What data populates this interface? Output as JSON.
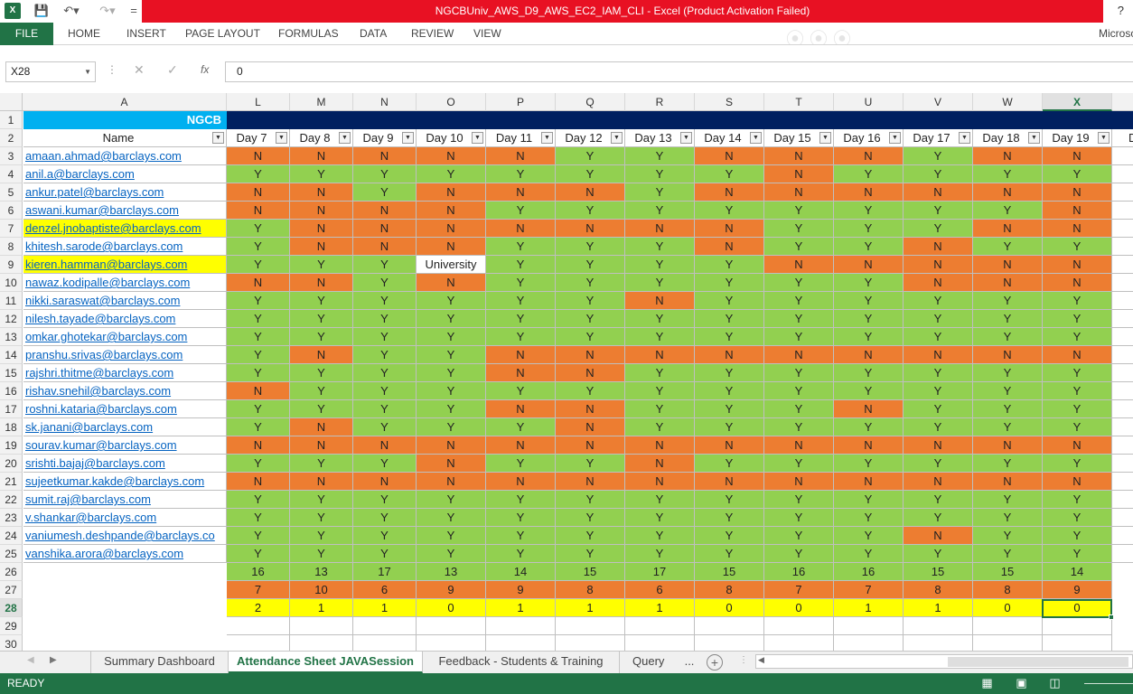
{
  "window": {
    "title": "NGCBUniv_AWS_D9_AWS_EC2_IAM_CLI - Excel (Product Activation Failed)",
    "app_icon": "X",
    "help": "?"
  },
  "qat": {
    "more": "="
  },
  "ribbon": {
    "file": "FILE",
    "tabs": [
      "HOME",
      "INSERT",
      "PAGE LAYOUT",
      "FORMULAS",
      "DATA",
      "REVIEW",
      "VIEW"
    ],
    "account": "Microso"
  },
  "formula_bar": {
    "name_box": "X28",
    "fx": "fx",
    "value": "0"
  },
  "columns": [
    "L",
    "M",
    "N",
    "O",
    "P",
    "Q",
    "R",
    "S",
    "T",
    "U",
    "V",
    "W",
    "X"
  ],
  "col_a": "A",
  "row_numbers": [
    "1",
    "2",
    "3",
    "4",
    "5",
    "6",
    "7",
    "8",
    "9",
    "10",
    "11",
    "12",
    "13",
    "14",
    "15",
    "16",
    "17",
    "18",
    "19",
    "20",
    "21",
    "22",
    "23",
    "24",
    "25",
    "26",
    "27",
    "28",
    "29",
    "30"
  ],
  "sheet": {
    "banner": "NGCB",
    "name_header": "Name",
    "day_headers": [
      "Day 7",
      "Day 8",
      "Day 9",
      "Day 10",
      "Day 11",
      "Day 12",
      "Day 13",
      "Day 14",
      "Day 15",
      "Day 16",
      "Day 17",
      "Day 18",
      "Day 19"
    ],
    "next_header_partial": "D",
    "rows": [
      {
        "email": "amaan.ahmad@barclays.com",
        "highlight": false,
        "values": [
          "N",
          "N",
          "N",
          "N",
          "N",
          "Y",
          "Y",
          "N",
          "N",
          "N",
          "Y",
          "N",
          "N"
        ]
      },
      {
        "email": "anil.a@barclays.com",
        "highlight": false,
        "values": [
          "Y",
          "Y",
          "Y",
          "Y",
          "Y",
          "Y",
          "Y",
          "Y",
          "N",
          "Y",
          "Y",
          "Y",
          "Y"
        ]
      },
      {
        "email": "ankur.patel@barclays.com",
        "highlight": false,
        "values": [
          "N",
          "N",
          "Y",
          "N",
          "N",
          "N",
          "Y",
          "N",
          "N",
          "N",
          "N",
          "N",
          "N"
        ]
      },
      {
        "email": "aswani.kumar@barclays.com",
        "highlight": false,
        "values": [
          "N",
          "N",
          "N",
          "N",
          "Y",
          "Y",
          "Y",
          "Y",
          "Y",
          "Y",
          "Y",
          "Y",
          "N"
        ]
      },
      {
        "email": "denzel.jnobaptiste@barclays.com",
        "highlight": true,
        "values": [
          "Y",
          "N",
          "N",
          "N",
          "N",
          "N",
          "N",
          "N",
          "Y",
          "Y",
          "Y",
          "N",
          "N"
        ]
      },
      {
        "email": "khitesh.sarode@barclays.com",
        "highlight": false,
        "values": [
          "Y",
          "N",
          "N",
          "N",
          "Y",
          "Y",
          "Y",
          "N",
          "Y",
          "Y",
          "N",
          "Y",
          "Y"
        ]
      },
      {
        "email": "kieren.hamman@barclays.com",
        "highlight": true,
        "values": [
          "Y",
          "Y",
          "Y",
          "University",
          "Y",
          "Y",
          "Y",
          "Y",
          "N",
          "N",
          "N",
          "N",
          "N"
        ]
      },
      {
        "email": "nawaz.kodipalle@barclays.com",
        "highlight": false,
        "values": [
          "N",
          "N",
          "Y",
          "N",
          "Y",
          "Y",
          "Y",
          "Y",
          "Y",
          "Y",
          "N",
          "N",
          "N"
        ]
      },
      {
        "email": "nikki.saraswat@barclays.com",
        "highlight": false,
        "values": [
          "Y",
          "Y",
          "Y",
          "Y",
          "Y",
          "Y",
          "N",
          "Y",
          "Y",
          "Y",
          "Y",
          "Y",
          "Y"
        ]
      },
      {
        "email": "nilesh.tayade@barclays.com",
        "highlight": false,
        "values": [
          "Y",
          "Y",
          "Y",
          "Y",
          "Y",
          "Y",
          "Y",
          "Y",
          "Y",
          "Y",
          "Y",
          "Y",
          "Y"
        ]
      },
      {
        "email": "omkar.ghotekar@barclays.com",
        "highlight": false,
        "values": [
          "Y",
          "Y",
          "Y",
          "Y",
          "Y",
          "Y",
          "Y",
          "Y",
          "Y",
          "Y",
          "Y",
          "Y",
          "Y"
        ]
      },
      {
        "email": "pranshu.srivas@barclays.com",
        "highlight": false,
        "values": [
          "Y",
          "N",
          "Y",
          "Y",
          "N",
          "N",
          "N",
          "N",
          "N",
          "N",
          "N",
          "N",
          "N"
        ]
      },
      {
        "email": "rajshri.thitme@barclays.com",
        "highlight": false,
        "values": [
          "Y",
          "Y",
          "Y",
          "Y",
          "N",
          "N",
          "Y",
          "Y",
          "Y",
          "Y",
          "Y",
          "Y",
          "Y"
        ]
      },
      {
        "email": "rishav.snehil@barclays.com",
        "highlight": false,
        "values": [
          "N",
          "Y",
          "Y",
          "Y",
          "Y",
          "Y",
          "Y",
          "Y",
          "Y",
          "Y",
          "Y",
          "Y",
          "Y"
        ]
      },
      {
        "email": "roshni.kataria@barclays.com",
        "highlight": false,
        "values": [
          "Y",
          "Y",
          "Y",
          "Y",
          "N",
          "N",
          "Y",
          "Y",
          "Y",
          "N",
          "Y",
          "Y",
          "Y"
        ]
      },
      {
        "email": "sk.janani@barclays.com",
        "highlight": false,
        "values": [
          "Y",
          "N",
          "Y",
          "Y",
          "Y",
          "N",
          "Y",
          "Y",
          "Y",
          "Y",
          "Y",
          "Y",
          "Y"
        ]
      },
      {
        "email": "sourav.kumar@barclays.com",
        "highlight": false,
        "values": [
          "N",
          "N",
          "N",
          "N",
          "N",
          "N",
          "N",
          "N",
          "N",
          "N",
          "N",
          "N",
          "N"
        ]
      },
      {
        "email": "srishti.bajaj@barclays.com",
        "highlight": false,
        "values": [
          "Y",
          "Y",
          "Y",
          "N",
          "Y",
          "Y",
          "N",
          "Y",
          "Y",
          "Y",
          "Y",
          "Y",
          "Y"
        ]
      },
      {
        "email": "sujeetkumar.kakde@barclays.com",
        "highlight": false,
        "values": [
          "N",
          "N",
          "N",
          "N",
          "N",
          "N",
          "N",
          "N",
          "N",
          "N",
          "N",
          "N",
          "N"
        ]
      },
      {
        "email": "sumit.raj@barclays.com",
        "highlight": false,
        "values": [
          "Y",
          "Y",
          "Y",
          "Y",
          "Y",
          "Y",
          "Y",
          "Y",
          "Y",
          "Y",
          "Y",
          "Y",
          "Y"
        ]
      },
      {
        "email": "v.shankar@barclays.com",
        "highlight": false,
        "values": [
          "Y",
          "Y",
          "Y",
          "Y",
          "Y",
          "Y",
          "Y",
          "Y",
          "Y",
          "Y",
          "Y",
          "Y",
          "Y"
        ]
      },
      {
        "email": "vaniumesh.deshpande@barclays.co",
        "highlight": false,
        "values": [
          "Y",
          "Y",
          "Y",
          "Y",
          "Y",
          "Y",
          "Y",
          "Y",
          "Y",
          "Y",
          "N",
          "Y",
          "Y"
        ]
      },
      {
        "email": "vanshika.arora@barclays.com",
        "highlight": false,
        "values": [
          "Y",
          "Y",
          "Y",
          "Y",
          "Y",
          "Y",
          "Y",
          "Y",
          "Y",
          "Y",
          "Y",
          "Y",
          "Y"
        ]
      }
    ],
    "total_y": [
      "16",
      "13",
      "17",
      "13",
      "14",
      "15",
      "17",
      "15",
      "16",
      "16",
      "15",
      "15",
      "14"
    ],
    "total_n": [
      "7",
      "10",
      "6",
      "9",
      "9",
      "8",
      "6",
      "8",
      "7",
      "7",
      "8",
      "8",
      "9"
    ],
    "total_other": [
      "2",
      "1",
      "1",
      "0",
      "1",
      "1",
      "1",
      "0",
      "0",
      "1",
      "1",
      "0",
      "0"
    ],
    "colors": {
      "present": "#92d050",
      "absent": "#ed7d31",
      "highlight": "#ffff00",
      "banner": "#00b0f0",
      "banner_dark": "#002060"
    }
  },
  "sheet_tabs": [
    "Summary Dashboard",
    "Attendance Sheet JAVASession",
    "Feedback - Students & Training",
    "Query Re"
  ],
  "tab_overflow": "...",
  "status": {
    "ready": "READY"
  },
  "icons": [
    "excel-icon",
    "save-icon",
    "undo-icon",
    "redo-icon",
    "filter-dropdown-icon",
    "add-sheet-icon",
    "normal-view-icon",
    "page-layout-icon",
    "page-break-icon"
  ]
}
